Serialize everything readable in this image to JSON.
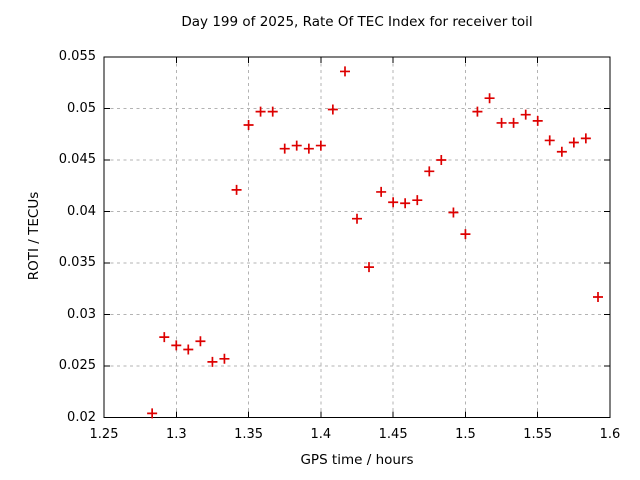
{
  "chart_data": {
    "type": "scatter",
    "title": "Day 199 of 2025, Rate Of TEC Index for receiver toil",
    "xlabel": "GPS time / hours",
    "ylabel": "ROTI / TECUs",
    "xlim": [
      1.25,
      1.6
    ],
    "ylim": [
      0.02,
      0.055
    ],
    "x_tick_labels": [
      "1.25",
      "1.3",
      "1.35",
      "1.4",
      "1.45",
      "1.5",
      "1.55",
      "1.6"
    ],
    "y_tick_labels": [
      "0.02",
      "0.025",
      "0.03",
      "0.035",
      "0.04",
      "0.045",
      "0.05",
      "0.055"
    ],
    "grid": true,
    "legend_position": "none",
    "marker_style": "plus",
    "colors": {
      "marker": "#dd0000",
      "grid": "#b3b3b3",
      "frame": "#000000",
      "background": "#ffffff",
      "text": "#000000"
    },
    "series": [
      {
        "name": "ROTI",
        "points": [
          [
            1.2833,
            0.0204
          ],
          [
            1.2917,
            0.0278
          ],
          [
            1.3,
            0.027
          ],
          [
            1.3083,
            0.0266
          ],
          [
            1.3167,
            0.0274
          ],
          [
            1.325,
            0.0254
          ],
          [
            1.3333,
            0.0257
          ],
          [
            1.3417,
            0.0421
          ],
          [
            1.35,
            0.0484
          ],
          [
            1.3583,
            0.0497
          ],
          [
            1.3667,
            0.0497
          ],
          [
            1.375,
            0.0461
          ],
          [
            1.3833,
            0.0464
          ],
          [
            1.3917,
            0.0461
          ],
          [
            1.4,
            0.0464
          ],
          [
            1.4083,
            0.0499
          ],
          [
            1.4167,
            0.0536
          ],
          [
            1.425,
            0.0393
          ],
          [
            1.4333,
            0.0346
          ],
          [
            1.4417,
            0.0419
          ],
          [
            1.45,
            0.0409
          ],
          [
            1.4583,
            0.0408
          ],
          [
            1.4667,
            0.0411
          ],
          [
            1.475,
            0.0439
          ],
          [
            1.4833,
            0.045
          ],
          [
            1.4917,
            0.0399
          ],
          [
            1.5,
            0.0378
          ],
          [
            1.5083,
            0.0497
          ],
          [
            1.5167,
            0.051
          ],
          [
            1.525,
            0.0486
          ],
          [
            1.5333,
            0.0486
          ],
          [
            1.5417,
            0.0494
          ],
          [
            1.55,
            0.0488
          ],
          [
            1.5583,
            0.0469
          ],
          [
            1.5667,
            0.0458
          ],
          [
            1.575,
            0.0467
          ],
          [
            1.5833,
            0.0471
          ],
          [
            1.5917,
            0.0317
          ]
        ]
      }
    ]
  }
}
